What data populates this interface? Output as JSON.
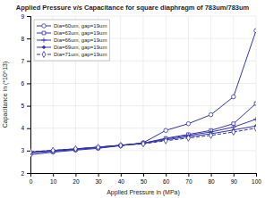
{
  "chart_data": {
    "type": "line",
    "title": "Applied Pressure v/s Capacitance for square diaphragm of 783um/783um",
    "xlabel": "Applied Pressure in (MPa)",
    "ylabel": "Capacitance in (*10^13)",
    "x": [
      0,
      10,
      20,
      30,
      40,
      50,
      60,
      70,
      80,
      90,
      100
    ],
    "series": [
      {
        "name": "Dia=60um, gap=19um",
        "color": "#3333aa",
        "marker": "circle",
        "line_style": "solid",
        "values": [
          2.82,
          2.93,
          3.02,
          3.1,
          3.22,
          3.35,
          3.9,
          4.2,
          4.6,
          5.4,
          8.35
        ]
      },
      {
        "name": "Dia=63um, gap=19um",
        "color": "#3333aa",
        "marker": "square",
        "line_style": "solid",
        "values": [
          2.9,
          2.97,
          3.05,
          3.13,
          3.23,
          3.33,
          3.55,
          3.72,
          3.9,
          4.2,
          5.1
        ]
      },
      {
        "name": "Dia=66um, gap=19um",
        "color": "#3333aa",
        "marker": "plus",
        "line_style": "solid",
        "values": [
          2.92,
          2.99,
          3.07,
          3.15,
          3.24,
          3.33,
          3.52,
          3.68,
          3.83,
          4.05,
          4.4
        ]
      },
      {
        "name": "Dia=69um, gap=19um",
        "color": "#3333aa",
        "marker": "point",
        "line_style": "solid",
        "values": [
          2.94,
          3.01,
          3.08,
          3.16,
          3.24,
          3.32,
          3.48,
          3.62,
          3.75,
          3.92,
          4.1
        ]
      },
      {
        "name": "Dia=71um, gap=19um",
        "color": "#3333aa",
        "marker": "diamond",
        "line_style": "dashed",
        "values": [
          2.95,
          3.01,
          3.08,
          3.15,
          3.23,
          3.3,
          3.44,
          3.56,
          3.68,
          3.83,
          4.0
        ]
      }
    ],
    "xlim": [
      0,
      100
    ],
    "ylim": [
      2,
      9
    ],
    "xticks": [
      0,
      10,
      20,
      30,
      40,
      50,
      60,
      70,
      80,
      90,
      100
    ],
    "yticks": [
      2,
      3,
      4,
      5,
      6,
      7,
      8,
      9
    ],
    "grid": true,
    "legend": "upper left"
  }
}
